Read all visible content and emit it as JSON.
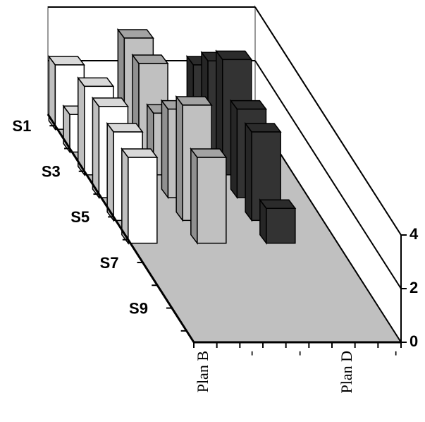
{
  "chart_data": {
    "type": "bar3d",
    "x_labels": [
      "Plan B",
      "-",
      "-",
      "Plan D",
      "-"
    ],
    "categories": [
      "S1",
      null,
      "S3",
      null,
      "S5",
      null,
      "S7",
      null,
      "S9",
      null
    ],
    "series": [
      {
        "color": "#ffffff",
        "values": [
          2.4,
          1.4,
          3.3,
          3.4,
          3.3,
          3.2,
          null,
          null,
          null,
          null
        ]
      },
      {
        "color": "#c0c0c0",
        "values": [
          3.4,
          3.3,
          2.3,
          3.3,
          4.3,
          3.2,
          null,
          null,
          null,
          null
        ]
      },
      {
        "color": "#333333",
        "values": [
          2.4,
          3.4,
          4.3,
          3.3,
          3.3,
          1.3,
          null,
          null,
          null,
          null
        ]
      }
    ],
    "ylim": [
      0,
      4
    ],
    "yticks": [
      0,
      2,
      4
    ],
    "grid": true,
    "floor_color": "#c0c0c0"
  }
}
